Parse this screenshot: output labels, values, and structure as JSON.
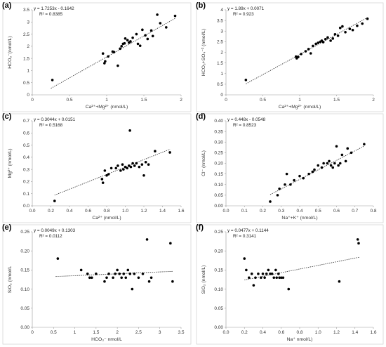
{
  "chart_data": [
    {
      "id": "a",
      "type": "scatter",
      "panel_label": "(a)",
      "equation": "y = 1.7253x - 0.1642",
      "r2": "R² = 0.8385",
      "xlabel": "Ca²⁺+Mg²⁺ (nmol/L)",
      "ylabel": "HCO₃⁻(nmol/L)",
      "xlim": [
        0,
        2
      ],
      "ylim": [
        0,
        3.5
      ],
      "xticks": [
        0,
        0.5,
        1,
        1.5,
        2
      ],
      "yticks": [
        0,
        0.5,
        1,
        1.5,
        2,
        2.5,
        3,
        3.5
      ],
      "trend": {
        "slope": 1.7253,
        "intercept": -0.1642,
        "x_range": [
          0.25,
          1.92
        ]
      },
      "points": [
        [
          0.27,
          0.61
        ],
        [
          0.95,
          1.7
        ],
        [
          0.97,
          1.3
        ],
        [
          0.98,
          1.38
        ],
        [
          1.02,
          1.58
        ],
        [
          1.08,
          1.78
        ],
        [
          1.1,
          1.76
        ],
        [
          1.15,
          1.2
        ],
        [
          1.18,
          1.9
        ],
        [
          1.2,
          2.0
        ],
        [
          1.22,
          2.1
        ],
        [
          1.24,
          2.12
        ],
        [
          1.25,
          2.32
        ],
        [
          1.28,
          2.25
        ],
        [
          1.3,
          2.15
        ],
        [
          1.32,
          2.2
        ],
        [
          1.35,
          2.35
        ],
        [
          1.4,
          2.5
        ],
        [
          1.42,
          2.1
        ],
        [
          1.45,
          2.02
        ],
        [
          1.48,
          2.68
        ],
        [
          1.52,
          2.45
        ],
        [
          1.55,
          2.3
        ],
        [
          1.6,
          2.65
        ],
        [
          1.62,
          2.42
        ],
        [
          1.68,
          3.3
        ],
        [
          1.72,
          2.95
        ],
        [
          1.8,
          2.78
        ],
        [
          1.92,
          3.25
        ]
      ]
    },
    {
      "id": "b",
      "type": "scatter",
      "panel_label": "(b)",
      "equation": "y = 1.89x + 0.0071",
      "r2": "R² = 0.923",
      "xlabel": "Ca²⁺+Mg²⁺ (nmol/L)",
      "ylabel": "HCO₃+SO₄⁻² (nmol/L)",
      "xlim": [
        0,
        2
      ],
      "ylim": [
        0,
        4
      ],
      "xticks": [
        0,
        0.5,
        1,
        1.5,
        2
      ],
      "yticks": [
        0,
        0.5,
        1,
        1.5,
        2,
        2.5,
        3,
        3.5,
        4
      ],
      "trend": {
        "slope": 1.89,
        "intercept": 0.0071,
        "x_range": [
          0.27,
          1.92
        ]
      },
      "points": [
        [
          0.27,
          0.7
        ],
        [
          0.95,
          1.8
        ],
        [
          0.96,
          1.72
        ],
        [
          0.98,
          1.78
        ],
        [
          1.02,
          1.92
        ],
        [
          1.08,
          2.05
        ],
        [
          1.12,
          2.15
        ],
        [
          1.15,
          1.95
        ],
        [
          1.18,
          2.3
        ],
        [
          1.22,
          2.4
        ],
        [
          1.25,
          2.45
        ],
        [
          1.28,
          2.5
        ],
        [
          1.3,
          2.55
        ],
        [
          1.32,
          2.48
        ],
        [
          1.35,
          2.62
        ],
        [
          1.38,
          2.7
        ],
        [
          1.42,
          2.55
        ],
        [
          1.45,
          2.65
        ],
        [
          1.48,
          2.85
        ],
        [
          1.52,
          2.78
        ],
        [
          1.55,
          3.15
        ],
        [
          1.58,
          3.22
        ],
        [
          1.62,
          2.95
        ],
        [
          1.68,
          3.1
        ],
        [
          1.72,
          3.05
        ],
        [
          1.78,
          3.25
        ],
        [
          1.85,
          3.35
        ],
        [
          1.92,
          3.58
        ]
      ]
    },
    {
      "id": "c",
      "type": "scatter",
      "panel_label": "(c)",
      "equation": "y = 0.3044x + 0.0151",
      "r2": "R² = 0.5168",
      "xlabel": "Ca²⁺ (nmol/L)",
      "ylabel": "Mg²⁺ (nmol/L)",
      "xlim": [
        0,
        1.6
      ],
      "ylim": [
        0,
        0.7
      ],
      "xticks": [
        0,
        0.2,
        0.4,
        0.6,
        0.8,
        1,
        1.2,
        1.4,
        1.6
      ],
      "yticks": [
        0,
        0.1,
        0.2,
        0.3,
        0.4,
        0.5,
        0.6,
        0.7
      ],
      "trend": {
        "slope": 0.3044,
        "intercept": 0.0151,
        "x_range": [
          0.24,
          1.48
        ]
      },
      "points": [
        [
          0.24,
          0.04
        ],
        [
          0.75,
          0.22
        ],
        [
          0.76,
          0.19
        ],
        [
          0.78,
          0.29
        ],
        [
          0.8,
          0.25
        ],
        [
          0.82,
          0.26
        ],
        [
          0.85,
          0.31
        ],
        [
          0.9,
          0.31
        ],
        [
          0.92,
          0.33
        ],
        [
          0.95,
          0.29
        ],
        [
          0.97,
          0.34
        ],
        [
          0.98,
          0.3
        ],
        [
          1.0,
          0.32
        ],
        [
          1.02,
          0.31
        ],
        [
          1.04,
          0.33
        ],
        [
          1.05,
          0.62
        ],
        [
          1.06,
          0.32
        ],
        [
          1.08,
          0.35
        ],
        [
          1.1,
          0.33
        ],
        [
          1.12,
          0.35
        ],
        [
          1.15,
          0.32
        ],
        [
          1.18,
          0.34
        ],
        [
          1.2,
          0.25
        ],
        [
          1.22,
          0.36
        ],
        [
          1.25,
          0.34
        ],
        [
          1.32,
          0.45
        ],
        [
          1.48,
          0.44
        ]
      ]
    },
    {
      "id": "d",
      "type": "scatter",
      "panel_label": "(d)",
      "equation": "y = 0.448x - 0.0548",
      "r2": "R² = 0.8523",
      "xlabel": "Na⁺+K⁺ (nmol/L)",
      "ylabel": "Cl⁻ (nmol/L)",
      "xlim": [
        0,
        0.8
      ],
      "ylim": [
        0,
        0.4
      ],
      "xticks": [
        0,
        0.1,
        0.2,
        0.3,
        0.4,
        0.5,
        0.6,
        0.7,
        0.8
      ],
      "yticks": [
        0,
        0.05,
        0.1,
        0.15,
        0.2,
        0.25,
        0.3,
        0.35,
        0.4
      ],
      "trend": {
        "slope": 0.448,
        "intercept": -0.0548,
        "x_range": [
          0.24,
          0.75
        ]
      },
      "points": [
        [
          0.24,
          0.02
        ],
        [
          0.28,
          0.05
        ],
        [
          0.29,
          0.08
        ],
        [
          0.32,
          0.1
        ],
        [
          0.33,
          0.15
        ],
        [
          0.35,
          0.1
        ],
        [
          0.37,
          0.12
        ],
        [
          0.4,
          0.14
        ],
        [
          0.42,
          0.13
        ],
        [
          0.45,
          0.15
        ],
        [
          0.47,
          0.16
        ],
        [
          0.48,
          0.17
        ],
        [
          0.5,
          0.19
        ],
        [
          0.52,
          0.18
        ],
        [
          0.53,
          0.2
        ],
        [
          0.55,
          0.2
        ],
        [
          0.56,
          0.21
        ],
        [
          0.57,
          0.19
        ],
        [
          0.58,
          0.18
        ],
        [
          0.59,
          0.2
        ],
        [
          0.6,
          0.28
        ],
        [
          0.61,
          0.19
        ],
        [
          0.62,
          0.2
        ],
        [
          0.63,
          0.24
        ],
        [
          0.65,
          0.21
        ],
        [
          0.66,
          0.27
        ],
        [
          0.68,
          0.25
        ],
        [
          0.75,
          0.29
        ]
      ]
    },
    {
      "id": "e",
      "type": "scatter",
      "panel_label": "(e)",
      "equation": "y = 0.0049x + 0.1303",
      "r2": "R² = 0.0112",
      "xlabel": "HCO₃⁻ nmol/L",
      "ylabel": "SiO₂ (nmol/L",
      "xlim": [
        0,
        3.5
      ],
      "ylim": [
        0,
        0.25
      ],
      "xticks": [
        0,
        0.5,
        1,
        1.5,
        2,
        2.5,
        3,
        3.5
      ],
      "yticks": [
        0,
        0.05,
        0.1,
        0.15,
        0.2,
        0.25
      ],
      "trend": {
        "slope": 0.0049,
        "intercept": 0.1303,
        "x_range": [
          0.55,
          3.3
        ]
      },
      "points": [
        [
          0.6,
          0.18
        ],
        [
          1.15,
          0.15
        ],
        [
          1.3,
          0.14
        ],
        [
          1.35,
          0.13
        ],
        [
          1.4,
          0.13
        ],
        [
          1.5,
          0.14
        ],
        [
          1.7,
          0.12
        ],
        [
          1.75,
          0.13
        ],
        [
          1.8,
          0.14
        ],
        [
          1.9,
          0.13
        ],
        [
          1.95,
          0.14
        ],
        [
          2.0,
          0.15
        ],
        [
          2.05,
          0.14
        ],
        [
          2.1,
          0.13
        ],
        [
          2.15,
          0.14
        ],
        [
          2.2,
          0.13
        ],
        [
          2.25,
          0.15
        ],
        [
          2.3,
          0.14
        ],
        [
          2.35,
          0.1
        ],
        [
          2.4,
          0.14
        ],
        [
          2.5,
          0.13
        ],
        [
          2.6,
          0.14
        ],
        [
          2.7,
          0.23
        ],
        [
          2.75,
          0.12
        ],
        [
          2.8,
          0.13
        ],
        [
          3.25,
          0.22
        ],
        [
          3.3,
          0.12
        ]
      ]
    },
    {
      "id": "f",
      "type": "scatter",
      "panel_label": "(f)",
      "equation": "y = 0.0477x + 0.1144",
      "r2": "R² = 0.3141",
      "xlabel": "Na⁺ nmol/L)",
      "ylabel": "SiO₂ (nmol/L)",
      "xlim": [
        0,
        1.6
      ],
      "ylim": [
        0,
        0.25
      ],
      "xticks": [
        0,
        0.2,
        0.4,
        0.6,
        0.8,
        1,
        1.2,
        1.4,
        1.6
      ],
      "yticks": [
        0,
        0.05,
        0.1,
        0.15,
        0.2,
        0.25
      ],
      "trend": {
        "slope": 0.0477,
        "intercept": 0.1144,
        "x_range": [
          0.2,
          1.45
        ]
      },
      "points": [
        [
          0.2,
          0.18
        ],
        [
          0.22,
          0.15
        ],
        [
          0.25,
          0.13
        ],
        [
          0.28,
          0.14
        ],
        [
          0.3,
          0.11
        ],
        [
          0.32,
          0.13
        ],
        [
          0.35,
          0.14
        ],
        [
          0.38,
          0.13
        ],
        [
          0.4,
          0.14
        ],
        [
          0.42,
          0.13
        ],
        [
          0.44,
          0.14
        ],
        [
          0.46,
          0.15
        ],
        [
          0.48,
          0.14
        ],
        [
          0.5,
          0.14
        ],
        [
          0.52,
          0.13
        ],
        [
          0.54,
          0.15
        ],
        [
          0.55,
          0.13
        ],
        [
          0.57,
          0.14
        ],
        [
          0.58,
          0.13
        ],
        [
          0.6,
          0.13
        ],
        [
          0.62,
          0.13
        ],
        [
          0.68,
          0.1
        ],
        [
          1.23,
          0.12
        ],
        [
          1.43,
          0.23
        ],
        [
          1.44,
          0.22
        ]
      ]
    }
  ]
}
